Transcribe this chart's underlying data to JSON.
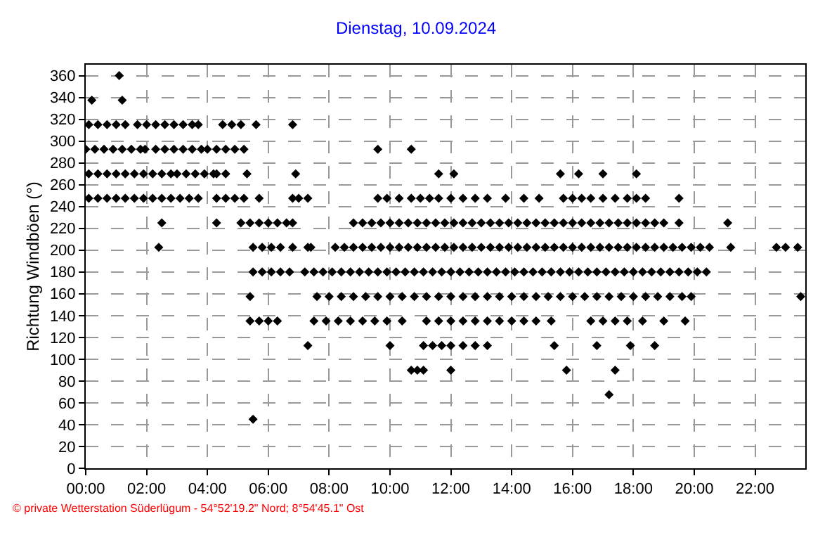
{
  "chart_data": {
    "type": "scatter",
    "title": "Dienstag, 10.09.2024",
    "ylabel": "Richtung Windböen (°)",
    "annotations": [
      "© private Wetterstation Süderlügum - 54°52'19.2\" Nord; 8°54'45.1\" Ost"
    ],
    "xlim": [
      0,
      23.65
    ],
    "ylim": [
      0,
      370
    ],
    "xticks": [
      {
        "value": 0,
        "label": "00:00"
      },
      {
        "value": 2,
        "label": "02:00"
      },
      {
        "value": 4,
        "label": "04:00"
      },
      {
        "value": 6,
        "label": "06:00"
      },
      {
        "value": 8,
        "label": "08:00"
      },
      {
        "value": 10,
        "label": "10:00"
      },
      {
        "value": 12,
        "label": "12:00"
      },
      {
        "value": 14,
        "label": "14:00"
      },
      {
        "value": 16,
        "label": "16:00"
      },
      {
        "value": 18,
        "label": "18:00"
      },
      {
        "value": 20,
        "label": "20:00"
      },
      {
        "value": 22,
        "label": "22:00"
      }
    ],
    "yticks": [
      0,
      20,
      40,
      60,
      80,
      100,
      120,
      140,
      160,
      180,
      200,
      220,
      240,
      260,
      280,
      300,
      320,
      340,
      360
    ],
    "grid": true,
    "marker": "diamond",
    "series": [
      {
        "color": "#000000",
        "x": [
          1.1
        ],
        "values": [
          360
        ]
      },
      {
        "color": "#000000",
        "x": [
          0.2,
          1.2
        ],
        "values": [
          337.5,
          337.5
        ]
      },
      {
        "color": "#000000",
        "x": [
          0.1,
          0.4,
          0.7,
          1.0,
          1.3,
          1.7,
          2.0,
          2.3,
          2.6,
          2.9,
          3.2,
          3.5,
          3.7,
          4.5,
          4.8,
          5.1,
          5.6,
          6.8
        ],
        "values": [
          315,
          315,
          315,
          315,
          315,
          315,
          315,
          315,
          315,
          315,
          315,
          315,
          315,
          315,
          315,
          315,
          315,
          315
        ]
      },
      {
        "color": "#000000",
        "x": [
          0.0,
          0.3,
          0.6,
          0.9,
          1.2,
          1.5,
          1.8,
          1.95,
          2.3,
          2.6,
          2.9,
          3.2,
          3.5,
          3.8,
          4.0,
          4.3,
          4.6,
          4.9,
          5.2,
          9.6,
          10.7
        ],
        "values": [
          292.5,
          292.5,
          292.5,
          292.5,
          292.5,
          292.5,
          292.5,
          292.5,
          292.5,
          292.5,
          292.5,
          292.5,
          292.5,
          292.5,
          292.5,
          292.5,
          292.5,
          292.5,
          292.5,
          292.5,
          292.5
        ]
      },
      {
        "color": "#000000",
        "x": [
          0.1,
          0.4,
          0.7,
          1.0,
          1.3,
          1.6,
          1.9,
          2.2,
          2.5,
          2.8,
          3.0,
          3.3,
          3.6,
          3.9,
          4.2,
          4.3,
          4.6,
          5.3,
          6.9,
          11.6,
          12.1,
          15.6,
          16.2,
          17.0,
          18.1
        ],
        "values": [
          270,
          270,
          270,
          270,
          270,
          270,
          270,
          270,
          270,
          270,
          270,
          270,
          270,
          270,
          270,
          270,
          270,
          270,
          270,
          270,
          270,
          270,
          270,
          270,
          270
        ]
      },
      {
        "color": "#000000",
        "x": [
          0.1,
          0.4,
          0.7,
          1.0,
          1.3,
          1.6,
          1.9,
          2.2,
          2.5,
          2.8,
          3.1,
          3.4,
          3.7,
          4.3,
          4.6,
          4.9,
          5.2,
          5.7,
          6.8,
          7.0,
          7.3,
          9.6,
          9.9,
          10.3,
          10.7,
          11.0,
          11.3,
          11.6,
          12.0,
          12.4,
          12.8,
          13.2,
          13.8,
          14.4,
          14.9,
          15.7,
          16.0,
          16.3,
          16.6,
          17.0,
          17.4,
          17.8,
          18.1,
          18.4,
          19.5
        ],
        "values": [
          247.5,
          247.5,
          247.5,
          247.5,
          247.5,
          247.5,
          247.5,
          247.5,
          247.5,
          247.5,
          247.5,
          247.5,
          247.5,
          247.5,
          247.5,
          247.5,
          247.5,
          247.5,
          247.5,
          247.5,
          247.5,
          247.5,
          247.5,
          247.5,
          247.5,
          247.5,
          247.5,
          247.5,
          247.5,
          247.5,
          247.5,
          247.5,
          247.5,
          247.5,
          247.5,
          247.5,
          247.5,
          247.5,
          247.5,
          247.5,
          247.5,
          247.5,
          247.5,
          247.5,
          247.5
        ]
      },
      {
        "color": "#000000",
        "x": [
          2.5,
          4.3,
          5.1,
          5.4,
          5.7,
          6.0,
          6.3,
          6.6,
          6.8,
          8.8,
          9.1,
          9.4,
          9.7,
          10.0,
          10.3,
          10.6,
          10.9,
          11.2,
          11.5,
          11.8,
          12.1,
          12.4,
          12.7,
          13.0,
          13.3,
          13.6,
          13.9,
          14.2,
          14.5,
          14.8,
          15.1,
          15.4,
          15.7,
          16.0,
          16.3,
          16.6,
          16.9,
          17.2,
          17.5,
          17.8,
          18.1,
          18.4,
          18.7,
          19.0,
          19.5,
          21.1
        ],
        "values": [
          225,
          225,
          225,
          225,
          225,
          225,
          225,
          225,
          225,
          225,
          225,
          225,
          225,
          225,
          225,
          225,
          225,
          225,
          225,
          225,
          225,
          225,
          225,
          225,
          225,
          225,
          225,
          225,
          225,
          225,
          225,
          225,
          225,
          225,
          225,
          225,
          225,
          225,
          225,
          225,
          225,
          225,
          225,
          225,
          225,
          225
        ]
      },
      {
        "color": "#000000",
        "x": [
          2.4,
          5.5,
          5.8,
          6.1,
          6.4,
          6.8,
          7.3,
          7.4,
          8.2,
          8.5,
          8.8,
          9.1,
          9.4,
          9.7,
          10.0,
          10.3,
          10.6,
          10.9,
          11.2,
          11.5,
          11.8,
          12.1,
          12.4,
          12.7,
          13.0,
          13.3,
          13.6,
          13.9,
          14.2,
          14.5,
          14.8,
          15.1,
          15.4,
          15.7,
          16.0,
          16.3,
          16.6,
          16.9,
          17.2,
          17.5,
          17.8,
          18.1,
          18.4,
          18.7,
          19.0,
          19.3,
          19.6,
          19.9,
          20.2,
          20.5,
          21.2,
          22.7,
          23.0,
          23.4
        ],
        "values": [
          202.5,
          202.5,
          202.5,
          202.5,
          202.5,
          202.5,
          202.5,
          202.5,
          202.5,
          202.5,
          202.5,
          202.5,
          202.5,
          202.5,
          202.5,
          202.5,
          202.5,
          202.5,
          202.5,
          202.5,
          202.5,
          202.5,
          202.5,
          202.5,
          202.5,
          202.5,
          202.5,
          202.5,
          202.5,
          202.5,
          202.5,
          202.5,
          202.5,
          202.5,
          202.5,
          202.5,
          202.5,
          202.5,
          202.5,
          202.5,
          202.5,
          202.5,
          202.5,
          202.5,
          202.5,
          202.5,
          202.5,
          202.5,
          202.5,
          202.5,
          202.5,
          202.5,
          202.5,
          202.5
        ]
      },
      {
        "color": "#000000",
        "x": [
          5.5,
          5.8,
          6.1,
          6.4,
          6.7,
          7.2,
          7.5,
          7.8,
          8.1,
          8.4,
          8.7,
          9.0,
          9.3,
          9.6,
          9.9,
          10.2,
          10.5,
          10.8,
          11.1,
          11.4,
          11.7,
          12.0,
          12.3,
          12.6,
          12.9,
          13.2,
          13.5,
          13.8,
          14.1,
          14.4,
          14.7,
          15.0,
          15.3,
          15.6,
          15.9,
          16.2,
          16.5,
          16.8,
          17.1,
          17.4,
          17.7,
          18.0,
          18.3,
          18.6,
          18.9,
          19.2,
          19.5,
          19.8,
          20.1,
          20.4
        ],
        "values": [
          180,
          180,
          180,
          180,
          180,
          180,
          180,
          180,
          180,
          180,
          180,
          180,
          180,
          180,
          180,
          180,
          180,
          180,
          180,
          180,
          180,
          180,
          180,
          180,
          180,
          180,
          180,
          180,
          180,
          180,
          180,
          180,
          180,
          180,
          180,
          180,
          180,
          180,
          180,
          180,
          180,
          180,
          180,
          180,
          180,
          180,
          180,
          180,
          180,
          180
        ]
      },
      {
        "color": "#000000",
        "x": [
          5.4,
          7.6,
          8.0,
          8.4,
          8.8,
          9.2,
          9.6,
          10.0,
          10.4,
          10.8,
          11.2,
          11.6,
          12.0,
          12.4,
          12.8,
          13.2,
          13.6,
          14.0,
          14.4,
          14.8,
          15.2,
          15.6,
          16.0,
          16.4,
          16.8,
          17.2,
          17.6,
          18.0,
          18.4,
          18.8,
          19.2,
          19.6,
          19.9,
          23.5
        ],
        "values": [
          157.5,
          157.5,
          157.5,
          157.5,
          157.5,
          157.5,
          157.5,
          157.5,
          157.5,
          157.5,
          157.5,
          157.5,
          157.5,
          157.5,
          157.5,
          157.5,
          157.5,
          157.5,
          157.5,
          157.5,
          157.5,
          157.5,
          157.5,
          157.5,
          157.5,
          157.5,
          157.5,
          157.5,
          157.5,
          157.5,
          157.5,
          157.5,
          157.5,
          157.5
        ]
      },
      {
        "color": "#000000",
        "x": [
          5.4,
          5.7,
          6.0,
          6.3,
          7.5,
          7.9,
          8.3,
          8.7,
          9.1,
          9.5,
          9.9,
          10.4,
          11.2,
          11.6,
          12.0,
          12.4,
          12.8,
          13.2,
          13.6,
          14.0,
          14.4,
          14.8,
          15.3,
          16.6,
          17.0,
          17.4,
          17.8,
          18.3,
          19.0,
          19.7
        ],
        "values": [
          135,
          135,
          135,
          135,
          135,
          135,
          135,
          135,
          135,
          135,
          135,
          135,
          135,
          135,
          135,
          135,
          135,
          135,
          135,
          135,
          135,
          135,
          135,
          135,
          135,
          135,
          135,
          135,
          135,
          135
        ]
      },
      {
        "color": "#000000",
        "x": [
          7.3,
          10.0,
          11.1,
          11.4,
          11.7,
          12.0,
          12.4,
          12.8,
          13.2,
          15.4,
          16.8,
          17.9,
          18.7
        ],
        "values": [
          112.5,
          112.5,
          112.5,
          112.5,
          112.5,
          112.5,
          112.5,
          112.5,
          112.5,
          112.5,
          112.5,
          112.5,
          112.5
        ]
      },
      {
        "color": "#000000",
        "x": [
          10.7,
          10.9,
          11.1,
          12.0,
          15.8,
          17.4
        ],
        "values": [
          90,
          90,
          90,
          90,
          90,
          90
        ]
      },
      {
        "color": "#000000",
        "x": [
          17.2
        ],
        "values": [
          67.5
        ]
      },
      {
        "color": "#000000",
        "x": [
          5.5
        ],
        "values": [
          45
        ]
      }
    ]
  }
}
